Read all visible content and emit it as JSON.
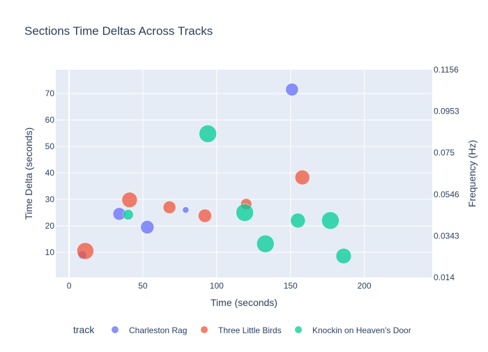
{
  "chart_data": {
    "type": "scatter",
    "title": "Sections Time Deltas Across Tracks",
    "xlabel": "Time (seconds)",
    "ylabel": "Time Delta (seconds)",
    "y2label": "Frequency (Hz)",
    "xlim": [
      -9,
      246
    ],
    "ylim": [
      0.5,
      79
    ],
    "y2lim": [
      0.014,
      0.1156
    ],
    "xticks": [
      0,
      50,
      100,
      150,
      200
    ],
    "yticks": [
      10,
      20,
      30,
      40,
      50,
      60,
      70
    ],
    "y2ticks": [
      "0.1156",
      "0.0953",
      "0.075",
      "0.0546",
      "0.0343",
      "0.014"
    ],
    "grid": true,
    "legend": {
      "title": "track",
      "position": "bottom"
    },
    "series": [
      {
        "name": "Charleston Rag",
        "color": "#636efa",
        "points": [
          {
            "x": 9,
            "y": 9,
            "size": 12
          },
          {
            "x": 34,
            "y": 24.5,
            "size": 18
          },
          {
            "x": 53,
            "y": 19.5,
            "size": 19
          },
          {
            "x": 79,
            "y": 26,
            "size": 9
          },
          {
            "x": 151,
            "y": 71.5,
            "size": 18
          }
        ]
      },
      {
        "name": "Three Little Birds",
        "color": "#ef553b",
        "points": [
          {
            "x": 11,
            "y": 10.5,
            "size": 24
          },
          {
            "x": 41,
            "y": 29.8,
            "size": 22
          },
          {
            "x": 68,
            "y": 27,
            "size": 18
          },
          {
            "x": 92,
            "y": 23.8,
            "size": 19
          },
          {
            "x": 120,
            "y": 28.2,
            "size": 16
          },
          {
            "x": 158,
            "y": 38.3,
            "size": 21
          }
        ]
      },
      {
        "name": "Knockin on Heaven's Door",
        "color": "#00cc96",
        "points": [
          {
            "x": 40,
            "y": 24.2,
            "size": 15
          },
          {
            "x": 94,
            "y": 54.8,
            "size": 25
          },
          {
            "x": 119,
            "y": 25,
            "size": 25
          },
          {
            "x": 133,
            "y": 13.2,
            "size": 25
          },
          {
            "x": 155,
            "y": 22,
            "size": 21
          },
          {
            "x": 177,
            "y": 22,
            "size": 25
          },
          {
            "x": 186,
            "y": 8.6,
            "size": 22
          }
        ]
      }
    ]
  }
}
